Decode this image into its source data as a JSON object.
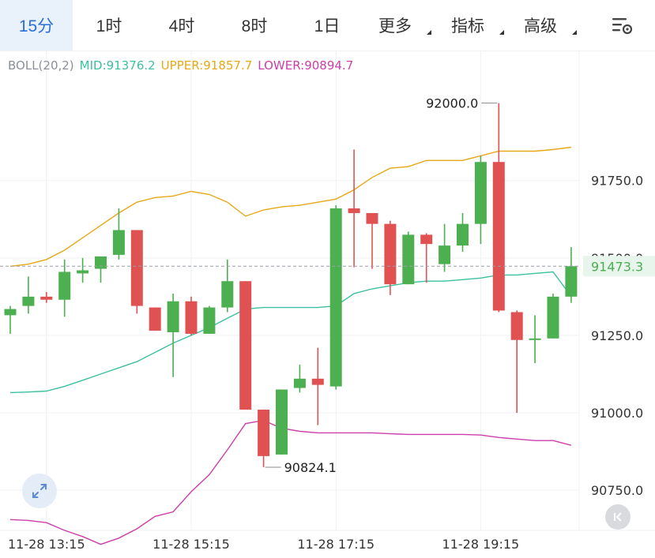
{
  "toolbar": {
    "intervals": [
      {
        "label": "15分",
        "active": true,
        "dropdown": false
      },
      {
        "label": "1时",
        "active": false,
        "dropdown": false
      },
      {
        "label": "4时",
        "active": false,
        "dropdown": false
      },
      {
        "label": "8时",
        "active": false,
        "dropdown": false
      },
      {
        "label": "1日",
        "active": false,
        "dropdown": false
      },
      {
        "label": "更多",
        "active": false,
        "dropdown": true
      },
      {
        "label": "指标",
        "active": false,
        "dropdown": true
      },
      {
        "label": "高级",
        "active": false,
        "dropdown": true
      }
    ],
    "settings_icon": "chart-settings-icon"
  },
  "legend": {
    "indicator": "BOLL(20,2)",
    "mid_label": "MID:",
    "mid_value": "91376.2",
    "upper_label": "UPPER:",
    "upper_value": "91857.7",
    "lower_label": "LOWER:",
    "lower_value": "90894.7"
  },
  "colors": {
    "up": "#4caf50",
    "down": "#e05252",
    "mid": "#3cc0a0",
    "upper": "#e6a817",
    "lower": "#cc3fa8",
    "grid": "#eef0f3",
    "accent": "#2b6fd6"
  },
  "chart_data": {
    "type": "candlestick",
    "y_ticks": [
      "91750.0",
      "91500.0",
      "91250.0",
      "91000.0",
      "90750.0"
    ],
    "y_tick_values": [
      91750,
      91500,
      91250,
      91000,
      90750
    ],
    "ylim": [
      90620,
      92170
    ],
    "x_tick_labels": [
      "11-28 13:15",
      "11-28 15:15",
      "11-28 17:15",
      "11-28 19:15"
    ],
    "x_tick_index": [
      2,
      10,
      18,
      26
    ],
    "current_price": "91473.3",
    "current_price_value": 91473.3,
    "high_annotation": {
      "text": "92000.0",
      "index": 27,
      "value": 92000.0
    },
    "low_annotation": {
      "text": "90824.1",
      "index": 14,
      "value": 90824.1
    },
    "candles": [
      {
        "o": 91315,
        "h": 91345,
        "l": 91255,
        "c": 91335
      },
      {
        "o": 91345,
        "h": 91440,
        "l": 91320,
        "c": 91375
      },
      {
        "o": 91375,
        "h": 91390,
        "l": 91355,
        "c": 91365
      },
      {
        "o": 91365,
        "h": 91495,
        "l": 91310,
        "c": 91455
      },
      {
        "o": 91450,
        "h": 91500,
        "l": 91420,
        "c": 91460
      },
      {
        "o": 91465,
        "h": 91500,
        "l": 91420,
        "c": 91505
      },
      {
        "o": 91510,
        "h": 91660,
        "l": 91495,
        "c": 91590
      },
      {
        "o": 91590,
        "h": 91590,
        "l": 91320,
        "c": 91345
      },
      {
        "o": 91340,
        "h": 91340,
        "l": 91265,
        "c": 91265
      },
      {
        "o": 91260,
        "h": 91385,
        "l": 91115,
        "c": 91360
      },
      {
        "o": 91360,
        "h": 91375,
        "l": 91250,
        "c": 91255
      },
      {
        "o": 91255,
        "h": 91345,
        "l": 91255,
        "c": 91340
      },
      {
        "o": 91340,
        "h": 91495,
        "l": 91325,
        "c": 91425
      },
      {
        "o": 91425,
        "h": 91425,
        "l": 91010,
        "c": 91010
      },
      {
        "o": 91010,
        "h": 91005,
        "l": 90824.1,
        "c": 90860
      },
      {
        "o": 90865,
        "h": 91075,
        "l": 90865,
        "c": 91075
      },
      {
        "o": 91080,
        "h": 91155,
        "l": 91065,
        "c": 91110
      },
      {
        "o": 91110,
        "h": 91210,
        "l": 90960,
        "c": 91090
      },
      {
        "o": 91085,
        "h": 91670,
        "l": 91075,
        "c": 91660
      },
      {
        "o": 91660,
        "h": 91850,
        "l": 91470,
        "c": 91645
      },
      {
        "o": 91645,
        "h": 91645,
        "l": 91465,
        "c": 91610
      },
      {
        "o": 91610,
        "h": 91620,
        "l": 91380,
        "c": 91415
      },
      {
        "o": 91415,
        "h": 91585,
        "l": 91415,
        "c": 91575
      },
      {
        "o": 91575,
        "h": 91580,
        "l": 91420,
        "c": 91545
      },
      {
        "o": 91480,
        "h": 91610,
        "l": 91455,
        "c": 91540
      },
      {
        "o": 91540,
        "h": 91645,
        "l": 91520,
        "c": 91610
      },
      {
        "o": 91610,
        "h": 91830,
        "l": 91545,
        "c": 91810
      },
      {
        "o": 91810,
        "h": 92000,
        "l": 91325,
        "c": 91330
      },
      {
        "o": 91325,
        "h": 91330,
        "l": 91000,
        "c": 91235
      },
      {
        "o": 91235,
        "h": 91315,
        "l": 91160,
        "c": 91240
      },
      {
        "o": 91240,
        "h": 91385,
        "l": 91240,
        "c": 91375
      },
      {
        "o": 91375,
        "h": 91535,
        "l": 91355,
        "c": 91473.3
      }
    ],
    "boll_upper": [
      91473,
      91480,
      91495,
      91525,
      91565,
      91605,
      91645,
      91680,
      91695,
      91700,
      91715,
      91705,
      91680,
      91635,
      91655,
      91665,
      91670,
      91680,
      91690,
      91720,
      91760,
      91790,
      91795,
      91815,
      91815,
      91815,
      91830,
      91845,
      91845,
      91845,
      91850,
      91857.7
    ],
    "boll_mid": [
      91065,
      91067,
      91070,
      91085,
      91105,
      91125,
      91145,
      91165,
      91195,
      91225,
      91250,
      91275,
      91305,
      91335,
      91340,
      91340,
      91340,
      91340,
      91345,
      91385,
      91400,
      91410,
      91420,
      91425,
      91425,
      91430,
      91435,
      91445,
      91445,
      91450,
      91455,
      91376.2
    ],
    "boll_lower": [
      90655,
      90652,
      90645,
      90620,
      90600,
      90575,
      90595,
      90625,
      90665,
      90680,
      90745,
      90800,
      90880,
      90965,
      90975,
      90950,
      90940,
      90935,
      90935,
      90935,
      90935,
      90932,
      90930,
      90930,
      90930,
      90930,
      90928,
      90920,
      90915,
      90910,
      90910,
      90894.7
    ]
  },
  "buttons": {
    "zoom_icon": "expand-arrows-icon",
    "end_icon": "skip-to-end-icon"
  }
}
